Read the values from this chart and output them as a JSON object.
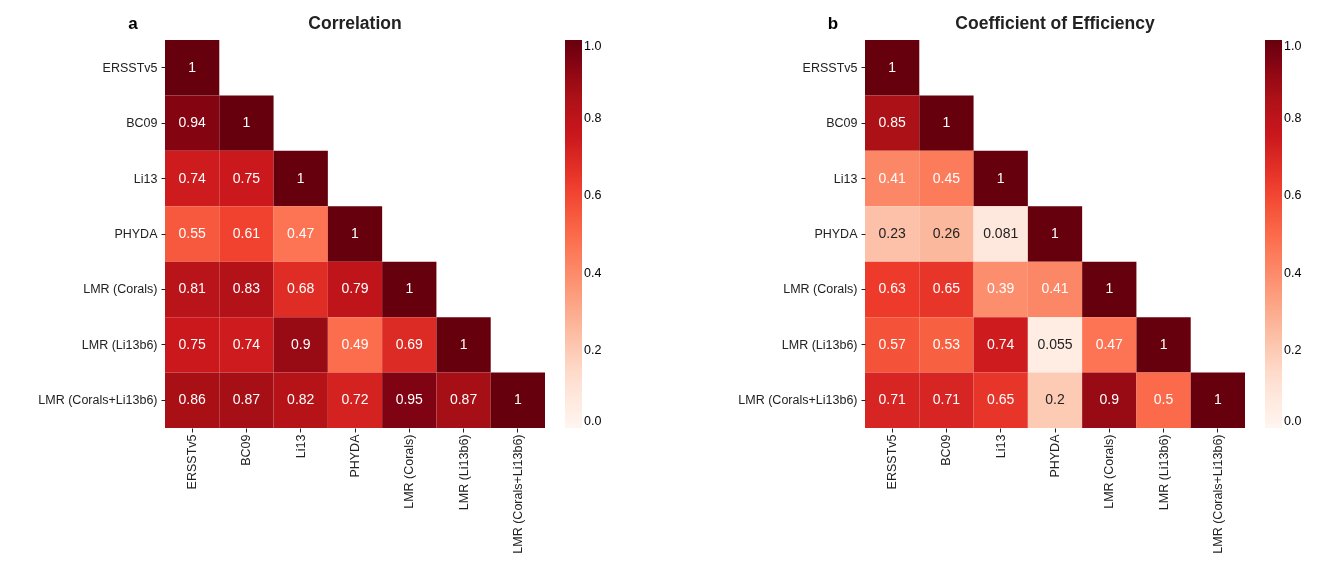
{
  "chart_data": [
    {
      "type": "heatmap",
      "title": "Correlation",
      "annotations": [
        "a"
      ],
      "categories": [
        "ERSSTv5",
        "BC09",
        "Li13",
        "PHYDA",
        "LMR (Corals)",
        "LMR (Li13b6)",
        "LMR (Corals+Li13b6)"
      ],
      "y_categories": [
        "ERSSTv5",
        "BC09",
        "Li13",
        "PHYDA",
        "LMR (Corals)",
        "LMR (Li13b6)",
        "LMR (Corals+Li13b6)"
      ],
      "cells": [
        [
          1,
          null,
          null,
          null,
          null,
          null,
          null
        ],
        [
          0.94,
          1,
          null,
          null,
          null,
          null,
          null
        ],
        [
          0.74,
          0.75,
          1,
          null,
          null,
          null,
          null
        ],
        [
          0.55,
          0.61,
          0.47,
          1,
          null,
          null,
          null
        ],
        [
          0.81,
          0.83,
          0.68,
          0.79,
          1,
          null,
          null
        ],
        [
          0.75,
          0.74,
          0.9,
          0.49,
          0.69,
          1,
          null
        ],
        [
          0.86,
          0.87,
          0.82,
          0.72,
          0.95,
          0.87,
          1
        ]
      ],
      "clim": [
        0,
        1
      ],
      "cticks": [
        {
          "value": 0,
          "label": "0.0"
        },
        {
          "value": 0.2,
          "label": "0.2"
        },
        {
          "value": 0.4,
          "label": "0.4"
        },
        {
          "value": 0.6,
          "label": "0.6"
        },
        {
          "value": 0.8,
          "label": "0.8"
        },
        {
          "value": 1,
          "label": "1.0"
        }
      ],
      "data_labels": true
    },
    {
      "type": "heatmap",
      "title": "Coefficient of Efficiency",
      "annotations": [
        "b"
      ],
      "categories": [
        "ERSSTv5",
        "BC09",
        "Li13",
        "PHYDA",
        "LMR (Corals)",
        "LMR (Li13b6)",
        "LMR (Corals+Li13b6)"
      ],
      "y_categories": [
        "ERSSTv5",
        "BC09",
        "Li13",
        "PHYDA",
        "LMR (Corals)",
        "LMR (Li13b6)",
        "LMR (Corals+Li13b6)"
      ],
      "cells": [
        [
          1,
          null,
          null,
          null,
          null,
          null,
          null
        ],
        [
          0.85,
          1,
          null,
          null,
          null,
          null,
          null
        ],
        [
          0.41,
          0.45,
          1,
          null,
          null,
          null,
          null
        ],
        [
          0.23,
          0.26,
          0.081,
          1,
          null,
          null,
          null
        ],
        [
          0.63,
          0.65,
          0.39,
          0.41,
          1,
          null,
          null
        ],
        [
          0.57,
          0.53,
          0.74,
          0.055,
          0.47,
          1,
          null
        ],
        [
          0.71,
          0.71,
          0.65,
          0.2,
          0.9,
          0.5,
          1
        ]
      ],
      "clim": [
        0,
        1
      ],
      "cticks": [
        {
          "value": 0,
          "label": "0.0"
        },
        {
          "value": 0.2,
          "label": "0.2"
        },
        {
          "value": 0.4,
          "label": "0.4"
        },
        {
          "value": 0.6,
          "label": "0.6"
        },
        {
          "value": 0.8,
          "label": "0.8"
        },
        {
          "value": 1,
          "label": "1.0"
        }
      ],
      "data_labels": true
    }
  ]
}
